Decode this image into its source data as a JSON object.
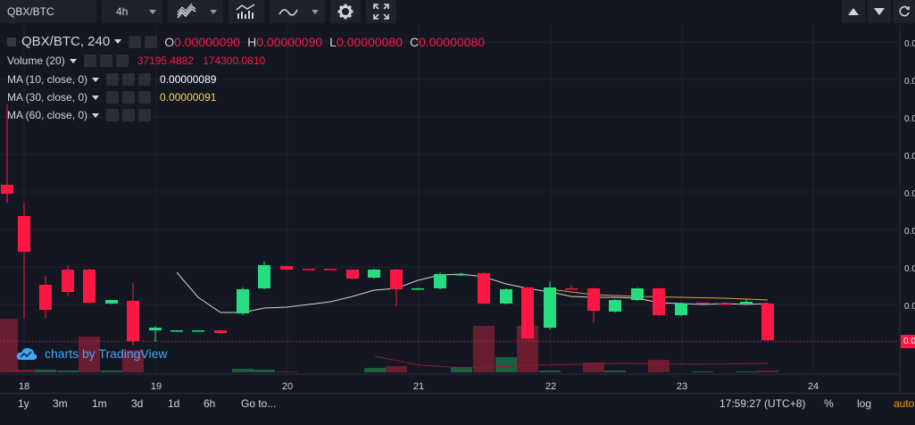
{
  "toolbar": {
    "symbol": "QBX/BTC",
    "interval": "4h"
  },
  "legend": {
    "title": "QBX/BTC, 240",
    "ohlc": {
      "o_label": "O",
      "o": "0.00000090",
      "h_label": "H",
      "h": "0.00000090",
      "l_label": "L",
      "l": "0.00000080",
      "c_label": "C",
      "c": "0.00000080"
    },
    "volume": {
      "label": "Volume (20)",
      "v1": "37195.4882",
      "v2": "174300.0810"
    },
    "ma10": {
      "label": "MA (10, close, 0)",
      "value": "0.00000089"
    },
    "ma30": {
      "label": "MA (30, close, 0)",
      "value": "0.00000091"
    },
    "ma60": {
      "label": "MA (60, close, 0)"
    }
  },
  "chart_data": {
    "type": "candlestick",
    "x_ticks": [
      "18",
      "19",
      "20",
      "21",
      "22",
      "23",
      "24"
    ],
    "y_tick_prefix": "0.0",
    "last_price_tag": "0.0",
    "colors": {
      "up": "#26de81",
      "down": "#ff1744",
      "ma10": "#d1d4dc",
      "ma30": "#e0a33a"
    }
  },
  "branding": {
    "text": "charts by TradingView"
  },
  "bottombar": {
    "ranges": [
      "1y",
      "3m",
      "1m",
      "3d",
      "1d",
      "6h",
      "Go to..."
    ],
    "clock": "17:59:27 (UTC+8)",
    "percent": "%",
    "log": "log",
    "auto": "auto"
  }
}
